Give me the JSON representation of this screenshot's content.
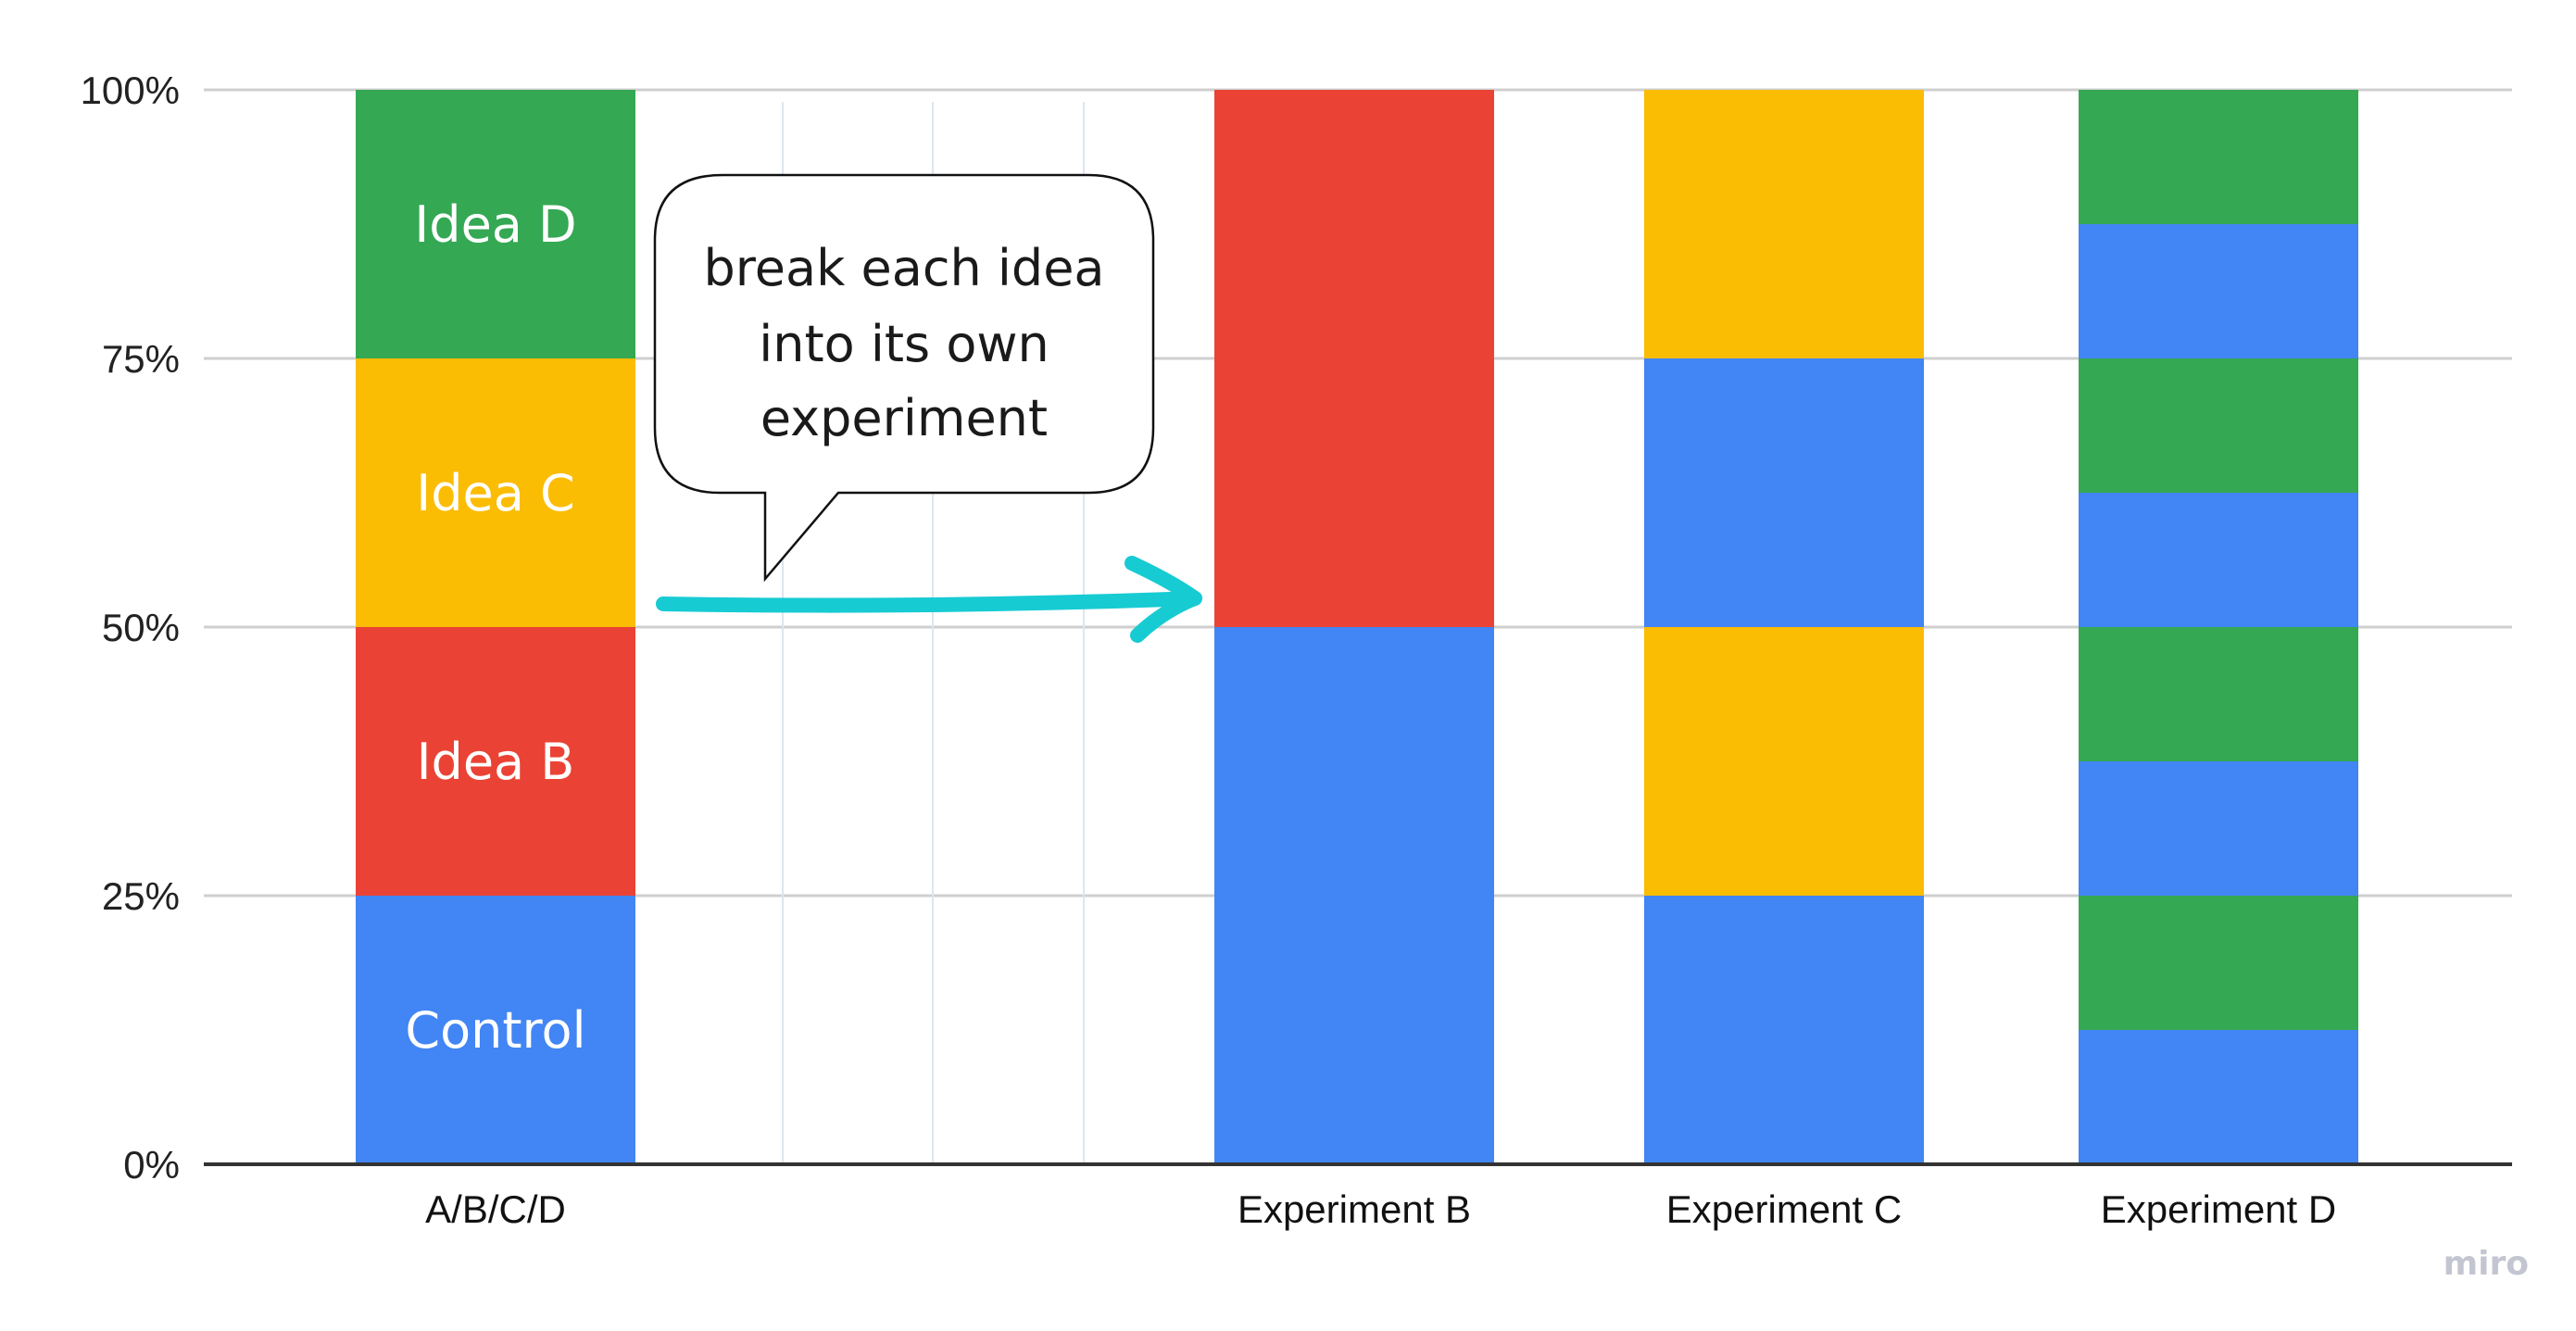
{
  "chart_data": {
    "type": "bar",
    "stacked": true,
    "percent_stacked": true,
    "categories": [
      "A/B/C/D",
      "Experiment B",
      "Experiment C",
      "Experiment D"
    ],
    "ylim": [
      0,
      100
    ],
    "yticks": [
      "0%",
      "25%",
      "50%",
      "75%",
      "100%"
    ],
    "grid": true,
    "colors": {
      "blue": "#4285f4",
      "red": "#ea4335",
      "yellow": "#fbbc04",
      "green": "#34a853"
    },
    "bars": [
      {
        "category": "A/B/C/D",
        "segments": [
          {
            "value": 25,
            "color": "#4285f4",
            "label": "Control"
          },
          {
            "value": 25,
            "color": "#ea4335",
            "label": "Idea B"
          },
          {
            "value": 25,
            "color": "#fbbc04",
            "label": "Idea C"
          },
          {
            "value": 25,
            "color": "#34a853",
            "label": "Idea D"
          }
        ]
      },
      {
        "category": "Experiment B",
        "segments": [
          {
            "value": 50,
            "color": "#4285f4"
          },
          {
            "value": 50,
            "color": "#ea4335"
          }
        ]
      },
      {
        "category": "Experiment C",
        "segments": [
          {
            "value": 25,
            "color": "#4285f4"
          },
          {
            "value": 25,
            "color": "#fbbc04"
          },
          {
            "value": 25,
            "color": "#4285f4"
          },
          {
            "value": 25,
            "color": "#fbbc04"
          }
        ]
      },
      {
        "category": "Experiment D",
        "segments": [
          {
            "value": 12.5,
            "color": "#4285f4"
          },
          {
            "value": 12.5,
            "color": "#34a853"
          },
          {
            "value": 12.5,
            "color": "#4285f4"
          },
          {
            "value": 12.5,
            "color": "#34a853"
          },
          {
            "value": 12.5,
            "color": "#4285f4"
          },
          {
            "value": 12.5,
            "color": "#34a853"
          },
          {
            "value": 12.5,
            "color": "#4285f4"
          },
          {
            "value": 12.5,
            "color": "#34a853"
          }
        ]
      }
    ],
    "annotation": {
      "lines": [
        "break each idea",
        "into its own",
        "experiment"
      ],
      "arrow_color": "#17cbd3"
    }
  },
  "watermark": "miro"
}
